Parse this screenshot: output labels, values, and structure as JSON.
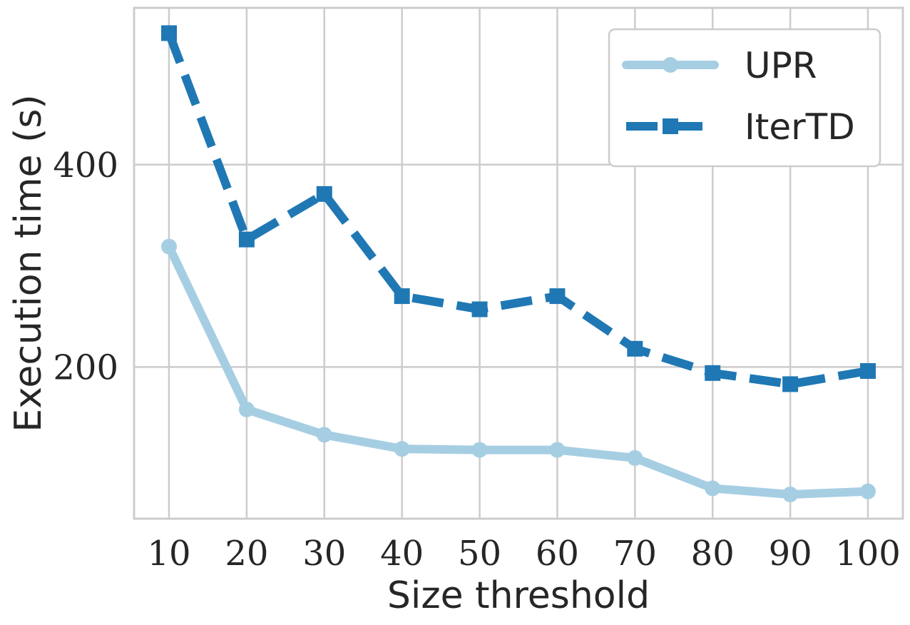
{
  "chart_data": {
    "type": "line",
    "title": "",
    "xlabel": "Size threshold",
    "ylabel": "Execution time (s)",
    "x": [
      10,
      20,
      30,
      40,
      50,
      60,
      70,
      80,
      90,
      100
    ],
    "x_ticks": [
      10,
      20,
      30,
      40,
      50,
      60,
      70,
      80,
      90,
      100
    ],
    "y_ticks": [
      200,
      400
    ],
    "xlim": [
      5.5,
      104.5
    ],
    "ylim": [
      50,
      555
    ],
    "grid": true,
    "legend_position": "top-right",
    "series": [
      {
        "name": "UPR",
        "color": "#a6cee3",
        "marker": "circle",
        "line_style": "solid",
        "values": [
          319,
          158,
          133,
          119,
          118,
          118,
          110,
          80,
          74,
          77
        ]
      },
      {
        "name": "IterTD",
        "color": "#1f78b4",
        "marker": "square",
        "line_style": "dashed",
        "values": [
          530,
          326,
          371,
          270,
          257,
          270,
          218,
          194,
          183,
          196
        ]
      }
    ]
  }
}
